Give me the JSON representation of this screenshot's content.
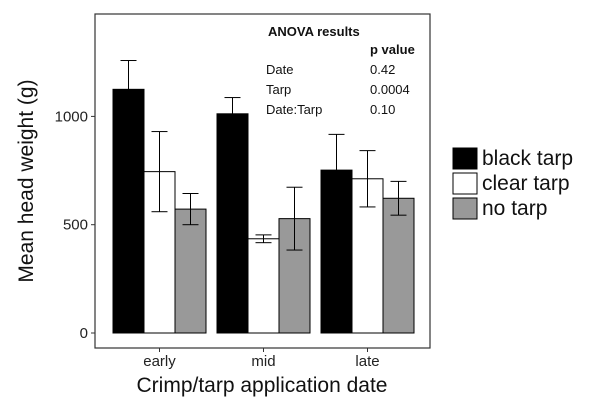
{
  "chart_data": {
    "type": "bar",
    "title": "",
    "xlabel": "Crimp/tarp application date",
    "ylabel": "Mean head weight (g)",
    "categories": [
      "early",
      "mid",
      "late"
    ],
    "ylim": [
      0,
      1380
    ],
    "yticks": [
      0,
      500,
      1000
    ],
    "grid": false,
    "legend_position": "right",
    "series": [
      {
        "name": "black tarp",
        "color": "#000000",
        "values": [
          1125,
          1012,
          752
        ],
        "errors": [
          133,
          75,
          165
        ]
      },
      {
        "name": "clear tarp",
        "color": "#ffffff",
        "values": [
          745,
          435,
          712
        ],
        "errors": [
          185,
          18,
          130
        ]
      },
      {
        "name": "no tarp",
        "color": "#999999",
        "values": [
          572,
          528,
          622
        ],
        "errors": [
          72,
          145,
          78
        ]
      }
    ],
    "annotation": {
      "title": "ANOVA results",
      "header": "p value",
      "rows": [
        {
          "term": "Date",
          "p": "0.42"
        },
        {
          "term": "Tarp",
          "p": "0.0004"
        },
        {
          "term": "Date:Tarp",
          "p": "0.10"
        }
      ]
    }
  }
}
